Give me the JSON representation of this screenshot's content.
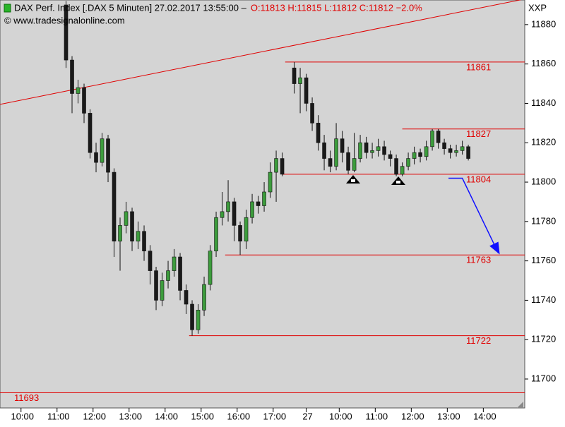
{
  "chart_data": {
    "type": "candlestick",
    "title": "DAX Perf. Index [.DAX  5 Minuten] 27.02.2017 13:55:00 –",
    "quote": "O:11813 H:11815 L:11812 C:11812 −2.0%",
    "source": "© www.tradesignalonline.com",
    "symbol": "XXP",
    "xlim": [
      0,
      174.8
    ],
    "xticks": [
      {
        "value": 7,
        "label": "10:00"
      },
      {
        "value": 19,
        "label": "11:00"
      },
      {
        "value": 31,
        "label": "12:00"
      },
      {
        "value": 43,
        "label": "13:00"
      },
      {
        "value": 55,
        "label": "14:00"
      },
      {
        "value": 67,
        "label": "15:00"
      },
      {
        "value": 79,
        "label": "16:00"
      },
      {
        "value": 91,
        "label": "17:00"
      },
      {
        "value": 102,
        "label": "27"
      },
      {
        "value": 113,
        "label": "10:00"
      },
      {
        "value": 125,
        "label": "11:00"
      },
      {
        "value": 137,
        "label": "12:00"
      },
      {
        "value": 149,
        "label": "13:00"
      },
      {
        "value": 161,
        "label": "14:00"
      }
    ],
    "ylim": [
      11685.3,
      11892.5
    ],
    "yticks": [
      11700,
      11720,
      11740,
      11760,
      11780,
      11800,
      11820,
      11840,
      11860,
      11880
    ],
    "up_color": "#3c9c3c",
    "down_color": "#1a1a1a",
    "x": [
      22,
      24,
      26,
      28,
      30,
      32,
      34,
      36,
      38,
      40,
      42,
      44,
      46,
      48,
      50,
      52,
      54,
      56,
      58,
      60,
      62,
      64,
      66,
      68,
      70,
      72,
      74,
      76,
      78,
      80,
      82,
      84,
      86,
      88,
      90,
      92,
      94,
      98,
      100,
      102,
      104,
      106,
      108,
      110,
      112,
      114,
      116,
      118,
      120,
      122,
      124,
      126,
      128,
      130,
      132,
      134,
      136,
      138,
      140,
      142,
      144,
      146,
      148,
      150,
      152,
      154,
      156
    ],
    "open": [
      11890,
      11862,
      11845,
      11848,
      11835,
      11815,
      11810,
      11822,
      11805,
      11770,
      11778,
      11785,
      11770,
      11775,
      11765,
      11755,
      11740,
      11750,
      11755,
      11762,
      11745,
      11738,
      11725,
      11735,
      11748,
      11765,
      11782,
      11785,
      11790,
      11778,
      11770,
      11782,
      11790,
      11788,
      11795,
      11805,
      11812,
      11858,
      11850,
      11853,
      11840,
      11830,
      11820,
      11812,
      11808,
      11822,
      11815,
      11806,
      11812,
      11820,
      11815,
      11816,
      11818,
      11814,
      11812,
      11804,
      11808,
      11812,
      11815,
      11813,
      11818,
      11826,
      11820,
      11817,
      11815,
      11816,
      11818
    ],
    "high": [
      11892,
      11864,
      11852,
      11850,
      11837,
      11820,
      11825,
      11824,
      11807,
      11782,
      11790,
      11787,
      11780,
      11778,
      11768,
      11757,
      11754,
      11760,
      11766,
      11764,
      11748,
      11740,
      11738,
      11752,
      11768,
      11785,
      11795,
      11801,
      11792,
      11780,
      11786,
      11794,
      11793,
      11800,
      11810,
      11816,
      11815,
      11861,
      11858,
      11855,
      11843,
      11834,
      11824,
      11816,
      11830,
      11826,
      11818,
      11825,
      11824,
      11823,
      11820,
      11822,
      11821,
      11816,
      11814,
      11810,
      11815,
      11818,
      11817,
      11821,
      11827,
      11827,
      11822,
      11819,
      11819,
      11821,
      11819
    ],
    "low": [
      11858,
      11835,
      11840,
      11830,
      11812,
      11805,
      11808,
      11800,
      11762,
      11755,
      11774,
      11765,
      11766,
      11760,
      11748,
      11735,
      11737,
      11746,
      11752,
      11740,
      11733,
      11722,
      11723,
      11732,
      11745,
      11762,
      11778,
      11780,
      11770,
      11763,
      11766,
      11779,
      11784,
      11785,
      11792,
      11790,
      11803,
      11845,
      11835,
      11836,
      11826,
      11816,
      11806,
      11805,
      11806,
      11810,
      11804,
      11805,
      11810,
      11812,
      11812,
      11813,
      11811,
      11808,
      11803,
      11803,
      11806,
      11809,
      11810,
      11811,
      11816,
      11817,
      11814,
      11812,
      11813,
      11814,
      11811
    ],
    "close": [
      11862,
      11845,
      11848,
      11835,
      11815,
      11810,
      11822,
      11805,
      11770,
      11778,
      11785,
      11770,
      11775,
      11765,
      11755,
      11740,
      11750,
      11755,
      11762,
      11745,
      11738,
      11725,
      11735,
      11748,
      11765,
      11782,
      11785,
      11790,
      11778,
      11770,
      11782,
      11790,
      11788,
      11795,
      11805,
      11812,
      11804,
      11850,
      11853,
      11840,
      11830,
      11820,
      11812,
      11808,
      11822,
      11815,
      11806,
      11812,
      11820,
      11815,
      11816,
      11818,
      11814,
      11812,
      11804,
      11808,
      11812,
      11815,
      11813,
      11818,
      11826,
      11820,
      11817,
      11815,
      11816,
      11818,
      11812
    ],
    "levels": [
      {
        "value": 11861,
        "x": 95,
        "color": "#e00000"
      },
      {
        "value": 11827,
        "x": 134,
        "color": "#e00000"
      },
      {
        "value": 11804,
        "x": 94,
        "color": "#e00000"
      },
      {
        "value": 11763,
        "x": 75,
        "color": "#e00000"
      },
      {
        "value": 11722,
        "x": 63,
        "color": "#e00000"
      },
      {
        "value": 11693,
        "x": 0,
        "color": "#e00000"
      }
    ],
    "trendline": {
      "x": [
        0,
        174.8
      ],
      "y": [
        11839.5,
        11893
      ],
      "color": "#e00000"
    },
    "arrow": {
      "x": [
        149.4,
        154,
        166
      ],
      "y": [
        11802,
        11802,
        11764
      ],
      "color": "#1010ff"
    }
  }
}
